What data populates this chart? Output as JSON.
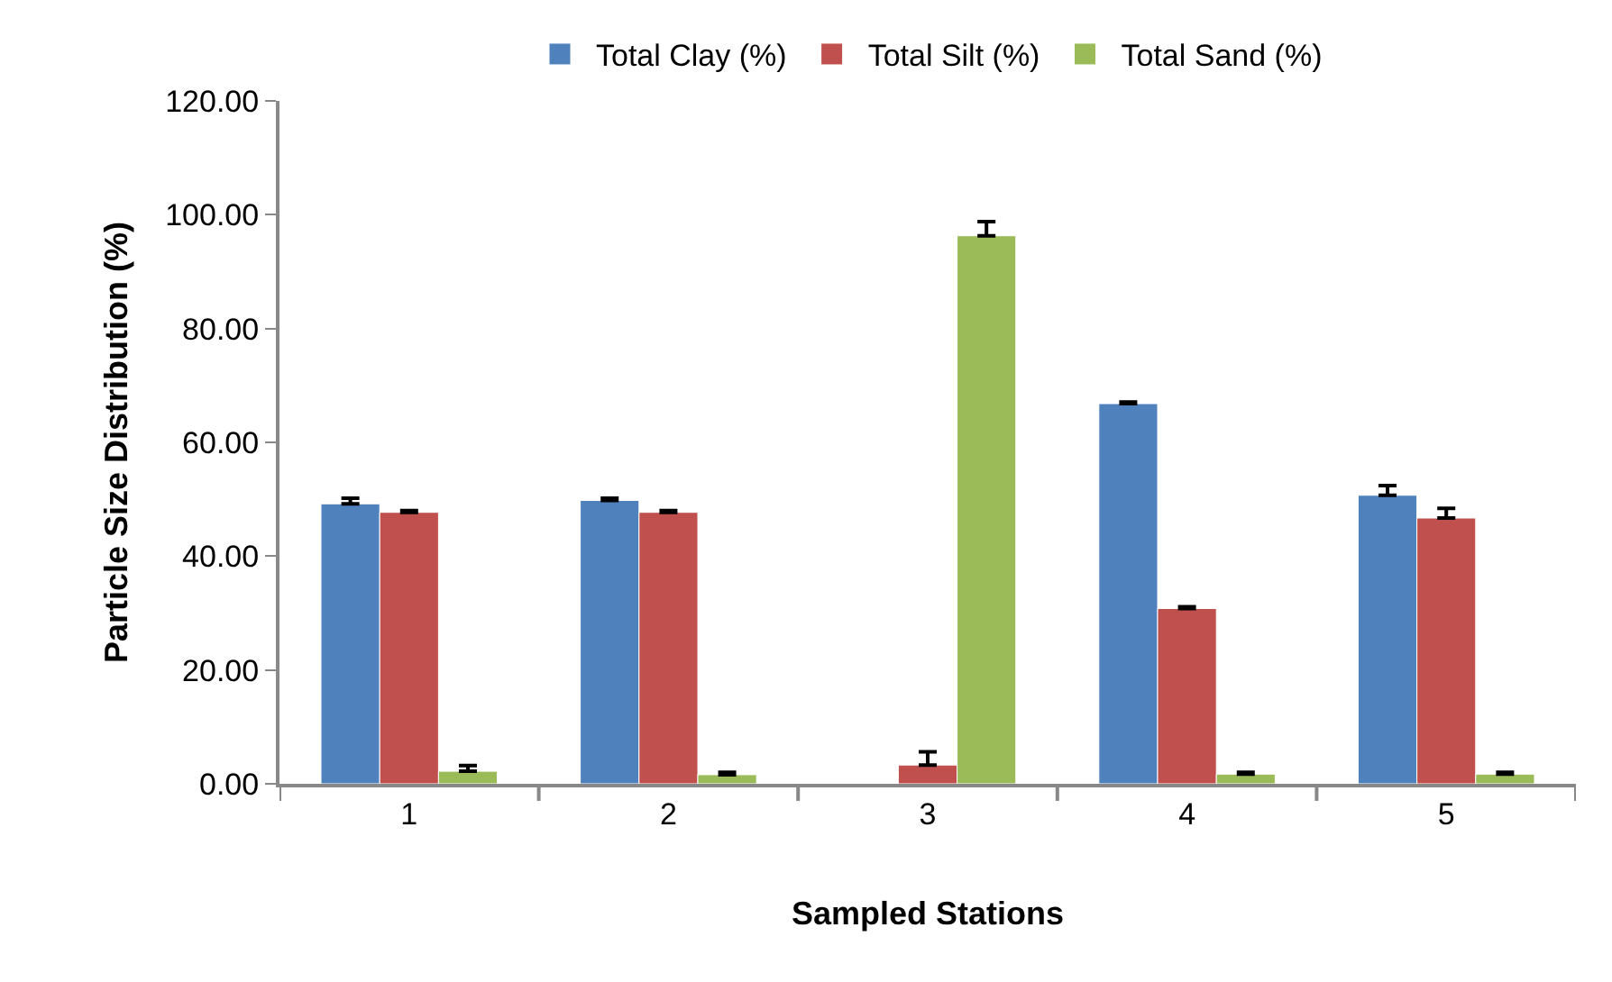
{
  "chart_data": {
    "type": "bar",
    "xlabel": "Sampled Stations",
    "ylabel": "Particle Size Distribution (%)",
    "categories": [
      "1",
      "2",
      "3",
      "4",
      "5"
    ],
    "series": [
      {
        "name": "Total Clay (%)",
        "color": "#4f81bd",
        "values": [
          49.2,
          49.8,
          null,
          66.8,
          50.7
        ],
        "errors": [
          [
            49.2,
            50.2
          ],
          [
            49.8,
            50.2
          ],
          null,
          [
            66.8,
            67.1
          ],
          [
            50.7,
            52.4
          ]
        ]
      },
      {
        "name": "Total Silt (%)",
        "color": "#c0504d",
        "values": [
          47.7,
          47.7,
          3.3,
          30.8,
          46.7
        ],
        "errors": [
          [
            47.7,
            48.0
          ],
          [
            47.7,
            48.0
          ],
          [
            3.3,
            5.6
          ],
          [
            30.8,
            31.1
          ],
          [
            46.7,
            48.4
          ]
        ]
      },
      {
        "name": "Total Sand (%)",
        "color": "#9bbb59",
        "values": [
          2.2,
          1.6,
          96.3,
          1.7,
          1.7
        ],
        "errors": [
          [
            2.2,
            3.2
          ],
          [
            1.6,
            2.0
          ],
          [
            96.3,
            98.8
          ],
          [
            1.7,
            2.0
          ],
          [
            1.7,
            2.0
          ]
        ]
      }
    ],
    "ylim": [
      0,
      120
    ],
    "yticks": [
      {
        "value": 0,
        "label": "0.00"
      },
      {
        "value": 20,
        "label": "20.00"
      },
      {
        "value": 40,
        "label": "40.00"
      },
      {
        "value": 60,
        "label": "60.00"
      },
      {
        "value": 80,
        "label": "80.00"
      },
      {
        "value": 100,
        "label": "100.00"
      },
      {
        "value": 120,
        "label": "120.00"
      }
    ],
    "grid": false,
    "legend": "top"
  }
}
